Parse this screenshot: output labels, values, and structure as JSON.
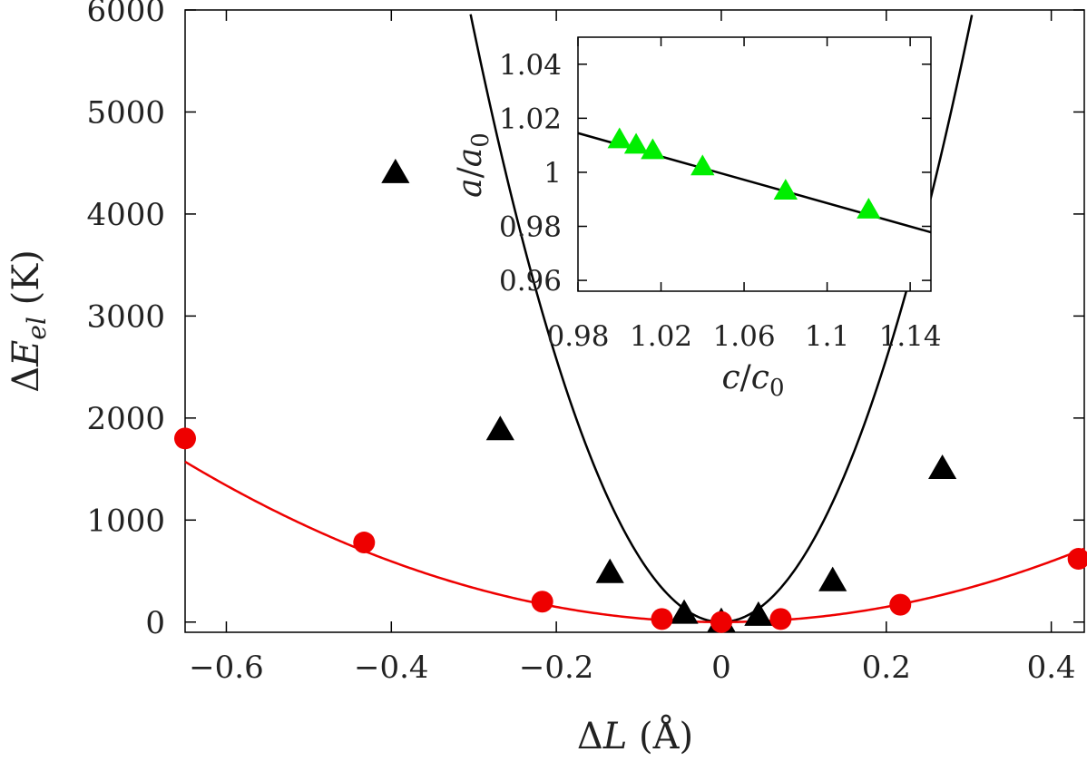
{
  "chart_data": [
    {
      "type": "scatter",
      "name": "main",
      "xlabel_prefix": "Δ",
      "xlabel_var": "L",
      "xlabel_unit": " (Å)",
      "ylabel_prefix": "Δ",
      "ylabel_var": "E",
      "ylabel_sub": "el",
      "ylabel_unit": " (K)",
      "xlim": [
        -0.65,
        0.44
      ],
      "ylim": [
        -100,
        6000
      ],
      "x_ticks": [
        -0.6,
        -0.4,
        -0.2,
        0,
        0.2,
        0.4
      ],
      "x_tick_labels": [
        "−0.6",
        "−0.4",
        "−0.2",
        "0",
        "0.2",
        "0.4"
      ],
      "y_ticks": [
        0,
        1000,
        2000,
        3000,
        4000,
        5000,
        6000
      ],
      "y_tick_labels": [
        "0",
        "1000",
        "2000",
        "3000",
        "4000",
        "5000",
        "6000"
      ],
      "series": [
        {
          "name": "black-triangles",
          "marker": "triangle",
          "color": "#000000",
          "x": [
            -0.395,
            -0.268,
            -0.135,
            -0.045,
            0.0,
            0.045,
            0.135,
            0.268
          ],
          "y": [
            4400,
            1880,
            480,
            80,
            0,
            60,
            400,
            1500
          ],
          "fit": {
            "a": 64500,
            "b": 0
          }
        },
        {
          "name": "red-circles",
          "marker": "circle",
          "color": "#ee0000",
          "x": [
            -0.65,
            -0.433,
            -0.217,
            -0.072,
            0.0,
            0.072,
            0.217,
            0.433
          ],
          "y": [
            1800,
            780,
            200,
            30,
            0,
            30,
            170,
            620
          ],
          "fit": {
            "a": 3720,
            "b": 0
          }
        }
      ]
    },
    {
      "type": "scatter",
      "name": "inset",
      "xlabel_var": "c",
      "xlabel_den": "c",
      "xlabel_sub": "0",
      "ylabel_var": "a",
      "ylabel_den": "a",
      "ylabel_sub": "0",
      "xlim": [
        0.98,
        1.15
      ],
      "ylim": [
        0.956,
        1.05
      ],
      "x_ticks": [
        0.98,
        1.02,
        1.06,
        1.1,
        1.14
      ],
      "x_tick_labels": [
        "0.98",
        "1.02",
        "1.06",
        "1.1",
        "1.14"
      ],
      "y_ticks": [
        0.96,
        0.98,
        1.0,
        1.02,
        1.04
      ],
      "y_tick_labels": [
        "0.96",
        "0.98",
        "1",
        "1.02",
        "1.04"
      ],
      "series": [
        {
          "name": "green-triangles",
          "marker": "triangle",
          "color": "#00ee00",
          "x": [
            1.0,
            1.008,
            1.016,
            1.04,
            1.08,
            1.12
          ],
          "y": [
            1.012,
            1.01,
            1.008,
            1.002,
            0.993,
            0.986
          ],
          "fit_line": {
            "x": [
              0.98,
              1.15
            ],
            "y": [
              1.0145,
              0.9778
            ]
          }
        }
      ]
    }
  ]
}
